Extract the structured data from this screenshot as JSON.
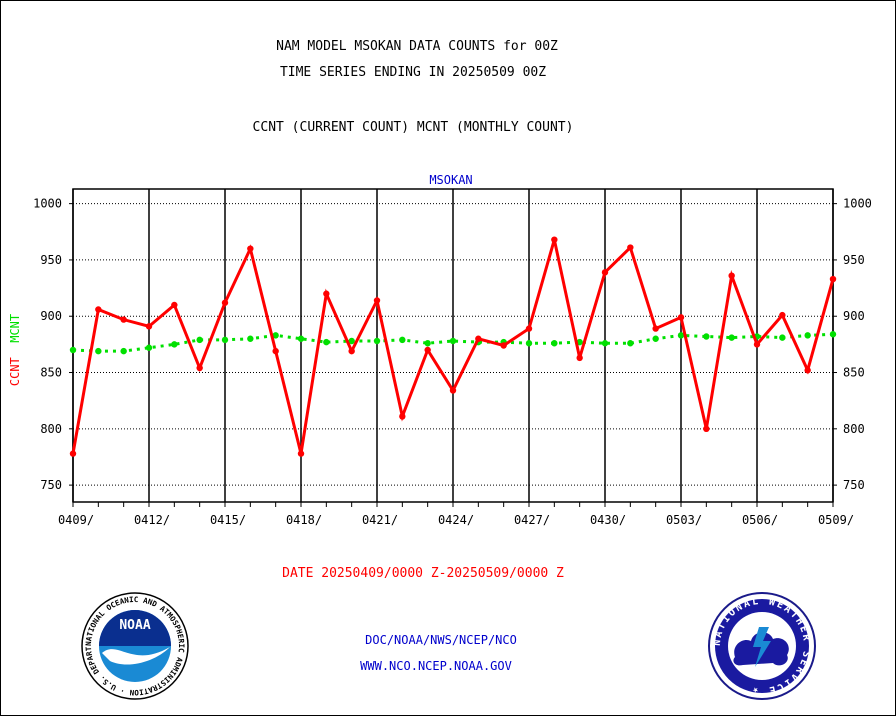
{
  "header": {
    "title_line1": "NAM MODEL MSOKAN DATA COUNTS for 00Z",
    "title_line2": "TIME SERIES ENDING IN 20250509 00Z",
    "subtitle": "CCNT (CURRENT COUNT) MCNT (MONTHLY COUNT)"
  },
  "footer": {
    "date_range": "DATE 20250409/0000 Z-20250509/0000 Z",
    "org_line1": "DOC/NOAA/NWS/NCEP/NCO",
    "org_line2": "WWW.NCO.NCEP.NOAA.GOV"
  },
  "logos": {
    "noaa_text": "NOAA",
    "noaa_ring": "NATIONAL OCEANIC AND ATMOSPHERIC ADMINISTRATION · U.S. DEPARTMENT OF COMMERCE ·",
    "nws_ring": "NATIONAL WEATHER SERVICE ★"
  },
  "colors": {
    "ccnt": "#ff0000",
    "mcnt": "#00e000",
    "station_label": "#0000cc",
    "footer_blue": "#0000cc"
  },
  "chart_data": {
    "type": "line",
    "title": "MSOKAN",
    "ylabel_ccnt": "CCNT",
    "ylabel_mcnt": "MCNT",
    "ylim": [
      735,
      1013
    ],
    "yticks": [
      750,
      800,
      850,
      900,
      950,
      1000
    ],
    "x_tick_labels": [
      "0409/",
      "0412/",
      "0415/",
      "0418/",
      "0421/",
      "0424/",
      "0427/",
      "0430/",
      "0503/",
      "0506/",
      "0509/"
    ],
    "x_tick_days": [
      0,
      3,
      6,
      9,
      12,
      15,
      18,
      21,
      24,
      27,
      30
    ],
    "grid": true,
    "series": [
      {
        "name": "CCNT",
        "color": "#ff0000",
        "values": [
          778,
          906,
          897,
          891,
          910,
          854,
          912,
          960,
          869,
          778,
          920,
          869,
          914,
          811,
          870,
          834,
          880,
          874,
          889,
          968,
          863,
          939,
          961,
          889,
          899,
          800,
          936,
          875,
          901,
          852,
          933
        ]
      },
      {
        "name": "MCNT",
        "color": "#00e000",
        "values": [
          870,
          869,
          869,
          872,
          875,
          879,
          879,
          880,
          883,
          880,
          877,
          878,
          878,
          879,
          876,
          878,
          877,
          877,
          876,
          876,
          877,
          876,
          876,
          880,
          883,
          882,
          881,
          882,
          881,
          883,
          884
        ]
      }
    ]
  }
}
